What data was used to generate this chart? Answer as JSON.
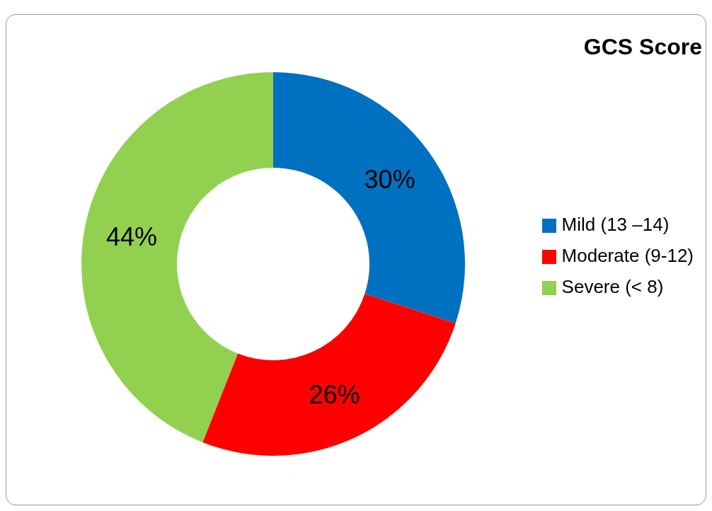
{
  "chart_data": {
    "type": "donut",
    "title": "GCS Score",
    "categories": [
      "Mild (13 –14)",
      "Moderate (9-12)",
      "Severe (< 8)"
    ],
    "values": [
      30,
      26,
      44
    ],
    "colors": [
      "#0070c0",
      "#ff0000",
      "#92d050"
    ],
    "value_labels": [
      "30%",
      "26%",
      "44%"
    ],
    "legend": "right"
  }
}
